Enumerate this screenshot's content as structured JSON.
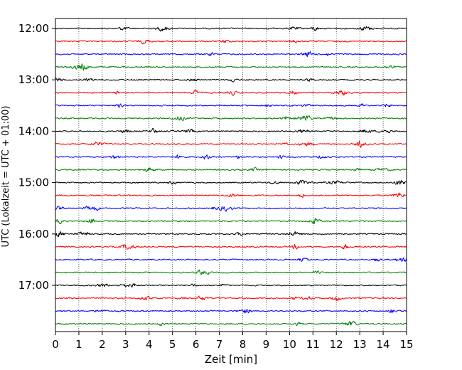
{
  "chart_data": {
    "type": "line",
    "title": "",
    "xlabel": "Zeit  [min]",
    "ylabel": "UTC (Lokalzeit = UTC + 01:00)",
    "xlim": [
      0,
      15
    ],
    "x_ticks": [
      "0",
      "1",
      "2",
      "3",
      "4",
      "5",
      "6",
      "7",
      "8",
      "9",
      "10",
      "11",
      "12",
      "13",
      "14",
      "15"
    ],
    "y_ticks": [
      "12:00",
      "13:00",
      "14:00",
      "15:00",
      "16:00",
      "17:00"
    ],
    "grid": "vertical-dotted",
    "trace_minutes": 15,
    "trace_colors": [
      "#000000",
      "#ff0000",
      "#0000ff",
      "#008000"
    ],
    "traces": [
      {
        "start": "12:00"
      },
      {
        "start": "12:15"
      },
      {
        "start": "12:30"
      },
      {
        "start": "12:45"
      },
      {
        "start": "13:00"
      },
      {
        "start": "13:15"
      },
      {
        "start": "13:30"
      },
      {
        "start": "13:45"
      },
      {
        "start": "14:00"
      },
      {
        "start": "14:15"
      },
      {
        "start": "14:30"
      },
      {
        "start": "14:45"
      },
      {
        "start": "15:00"
      },
      {
        "start": "15:15"
      },
      {
        "start": "15:30"
      },
      {
        "start": "15:45"
      },
      {
        "start": "16:00"
      },
      {
        "start": "16:15"
      },
      {
        "start": "16:30"
      },
      {
        "start": "16:45"
      },
      {
        "start": "17:00"
      },
      {
        "start": "17:15"
      },
      {
        "start": "17:30"
      },
      {
        "start": "17:45"
      }
    ]
  }
}
